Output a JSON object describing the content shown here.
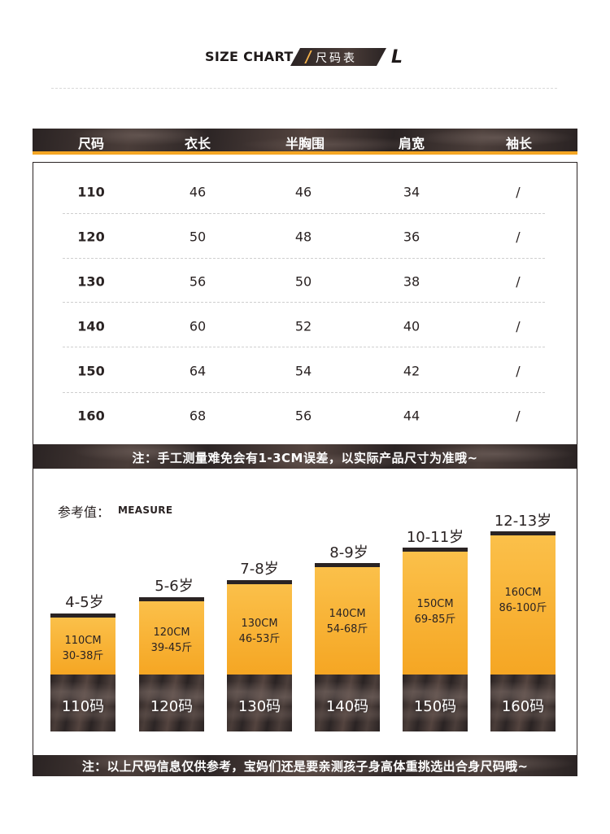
{
  "header": {
    "title": "SIZE CHART",
    "tag": "尺码表",
    "mark": "L"
  },
  "table": {
    "columns": [
      "尺码",
      "衣长",
      "半胸围",
      "肩宽",
      "袖长"
    ],
    "rows": [
      [
        "110",
        "46",
        "46",
        "34",
        "/"
      ],
      [
        "120",
        "50",
        "48",
        "36",
        "/"
      ],
      [
        "130",
        "56",
        "50",
        "38",
        "/"
      ],
      [
        "140",
        "60",
        "52",
        "40",
        "/"
      ],
      [
        "150",
        "64",
        "54",
        "42",
        "/"
      ],
      [
        "160",
        "68",
        "56",
        "44",
        "/"
      ]
    ]
  },
  "note1": "注：手工测量难免会有1-3CM误差，以实际产品尺寸为准哦~",
  "measure": {
    "label": "参考值：",
    "label_en": "MEASURE",
    "items": [
      {
        "age": "4-5岁",
        "height": "110CM",
        "weight": "30-38斤",
        "size": "110码"
      },
      {
        "age": "5-6岁",
        "height": "120CM",
        "weight": "39-45斤",
        "size": "120码"
      },
      {
        "age": "7-8岁",
        "height": "130CM",
        "weight": "46-53斤",
        "size": "130码"
      },
      {
        "age": "8-9岁",
        "height": "140CM",
        "weight": "54-68斤",
        "size": "140码"
      },
      {
        "age": "10-11岁",
        "height": "150CM",
        "weight": "69-85斤",
        "size": "150码"
      },
      {
        "age": "12-13岁",
        "height": "160CM",
        "weight": "86-100斤",
        "size": "160码"
      }
    ]
  },
  "note2": "注：以上尺码信息仅供参考，宝妈们还是要亲测孩子身高体重挑选出合身尺码哦~",
  "colors": {
    "accent": "#f5a623",
    "dark": "#2a2323"
  }
}
